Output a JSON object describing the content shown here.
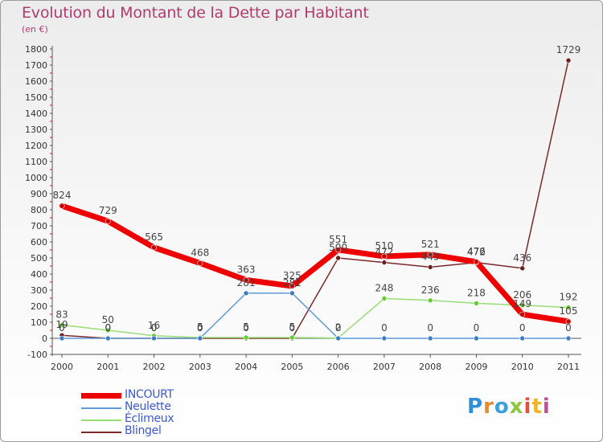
{
  "chart_data": {
    "type": "line",
    "title": "Evolution du Montant de la Dette par Habitant",
    "subtitle": "(en €)",
    "xlabel": "",
    "ylabel": "",
    "categories": [
      "2000",
      "2001",
      "2002",
      "2003",
      "2004",
      "2005",
      "2006",
      "2007",
      "2008",
      "2009",
      "2010",
      "2011"
    ],
    "ylim": [
      -100,
      1800
    ],
    "yticks": [
      -100,
      0,
      100,
      200,
      300,
      400,
      500,
      600,
      700,
      800,
      900,
      1000,
      1100,
      1200,
      1300,
      1400,
      1500,
      1600,
      1700,
      1800
    ],
    "grid": false,
    "legend": "bottom-left",
    "series": [
      {
        "name": "INCOURT",
        "color": "#ee0000",
        "width": 7,
        "point_color": "#cc0000",
        "values": [
          824,
          729,
          565,
          468,
          363,
          325,
          551,
          510,
          521,
          476,
          149,
          105
        ],
        "labels": [
          "824",
          "729",
          "565",
          "468",
          "363",
          "325",
          "551",
          "510",
          "521",
          "476",
          "149",
          "105"
        ]
      },
      {
        "name": "Neulette",
        "color": "#5f9ad6",
        "width": 1.5,
        "point_color": "#3d7dc4",
        "values": [
          0,
          0,
          0,
          0,
          281,
          281,
          0,
          0,
          0,
          0,
          0,
          0
        ],
        "labels": [
          "0",
          "0",
          "0",
          "0",
          "281",
          "281",
          "0",
          "0",
          "0",
          "0",
          "0",
          "0"
        ]
      },
      {
        "name": "Éclimeux",
        "color": "#99dd77",
        "width": 1.5,
        "point_color": "#66cc33",
        "values": [
          83,
          50,
          16,
          5,
          5,
          5,
          2,
          248,
          236,
          218,
          206,
          192
        ],
        "labels": [
          "83",
          "50",
          "16",
          "5",
          "5",
          "5",
          "2",
          "248",
          "236",
          "218",
          "206",
          "192"
        ]
      },
      {
        "name": "Blingel",
        "color": "#7a2a2a",
        "width": 1.5,
        "point_color": "#6a1f1f",
        "values": [
          19,
          0,
          0,
          0,
          0,
          0,
          500,
          472,
          443,
          472,
          436,
          1729
        ],
        "labels": [
          "19",
          "0",
          "0",
          "0",
          "0",
          "0",
          "500",
          "472",
          "443",
          "472",
          "436",
          "1729"
        ]
      }
    ]
  },
  "logo": {
    "text": "Proxiti"
  }
}
